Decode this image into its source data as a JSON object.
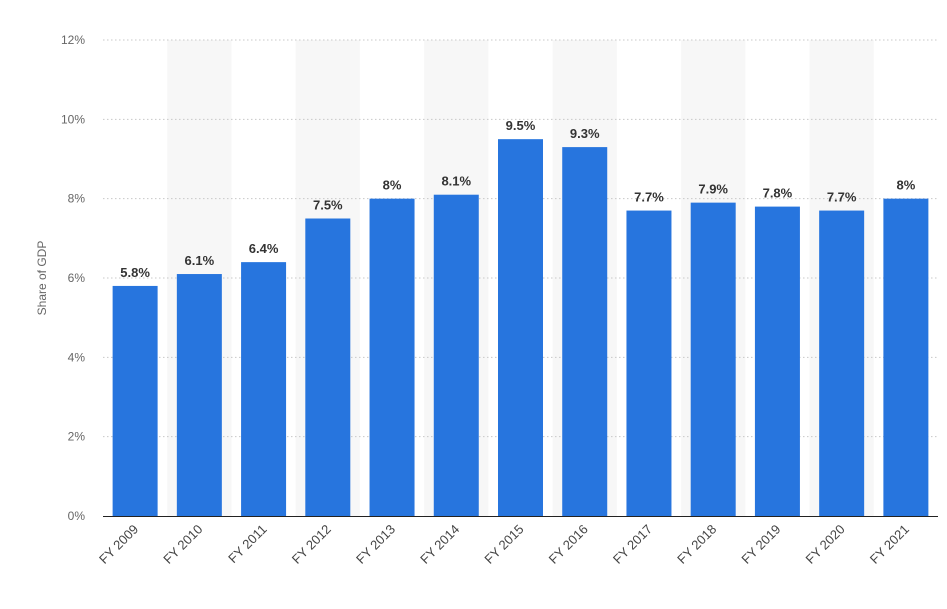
{
  "chart_data": {
    "type": "bar",
    "categories": [
      "FY 2009",
      "FY 2010",
      "FY 2011",
      "FY 2012",
      "FY 2013",
      "FY 2014",
      "FY 2015",
      "FY 2016",
      "FY 2017",
      "FY 2018",
      "FY 2019",
      "FY 2020",
      "FY 2021"
    ],
    "values": [
      5.8,
      6.1,
      6.4,
      7.5,
      8,
      8.1,
      9.5,
      9.3,
      7.7,
      7.9,
      7.8,
      7.7,
      8
    ],
    "value_labels": [
      "5.8%",
      "6.1%",
      "6.4%",
      "7.5%",
      "8%",
      "8.1%",
      "9.5%",
      "9.3%",
      "7.7%",
      "7.9%",
      "7.8%",
      "7.7%",
      "8%"
    ],
    "title": "",
    "xlabel": "",
    "ylabel": "Share of GDP",
    "ylim": [
      0,
      12
    ],
    "y_ticks": [
      0,
      2,
      4,
      6,
      8,
      10,
      12
    ],
    "y_tick_labels": [
      "0%",
      "2%",
      "4%",
      "6%",
      "8%",
      "10%",
      "12%"
    ],
    "grid": true,
    "legend": "none",
    "colors": {
      "bar": "#2775de",
      "band": "#f7f7f7",
      "grid": "#c8c8c8"
    }
  }
}
